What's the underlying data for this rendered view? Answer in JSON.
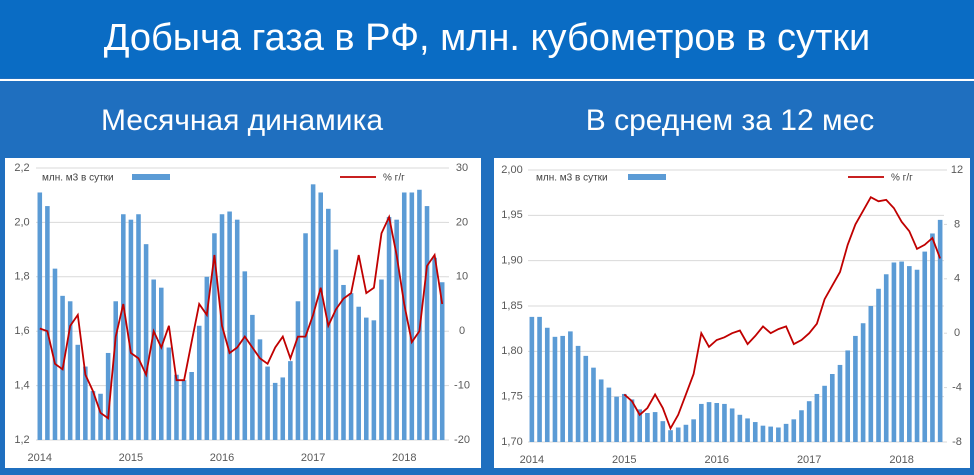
{
  "title": "Добыча газа в РФ, млн. кубометров в сутки",
  "chart_data": [
    {
      "type": "bar",
      "title": "Месячная динамика",
      "categories": [
        "2014",
        null,
        null,
        null,
        null,
        null,
        null,
        null,
        null,
        null,
        null,
        null,
        "2015",
        null,
        null,
        null,
        null,
        null,
        null,
        null,
        null,
        null,
        null,
        null,
        "2016",
        null,
        null,
        null,
        null,
        null,
        null,
        null,
        null,
        null,
        null,
        null,
        "2017",
        null,
        null,
        null,
        null,
        null,
        null,
        null,
        null,
        null,
        null,
        null,
        "2018",
        null,
        null,
        null,
        null,
        null
      ],
      "series": [
        {
          "name": "млн. м3 в сутки",
          "type": "bar",
          "color": "#5b9bd5",
          "values": [
            2.11,
            2.06,
            1.83,
            1.73,
            1.71,
            1.55,
            1.47,
            1.38,
            1.37,
            1.52,
            1.71,
            2.03,
            2.01,
            2.03,
            1.92,
            1.79,
            1.76,
            1.54,
            1.44,
            1.42,
            1.45,
            1.62,
            1.8,
            1.96,
            2.03,
            2.04,
            2.01,
            1.82,
            1.66,
            1.57,
            1.47,
            1.41,
            1.43,
            1.49,
            1.71,
            1.96,
            2.14,
            2.11,
            2.05,
            1.9,
            1.77,
            1.74,
            1.69,
            1.65,
            1.64,
            1.79,
            2.02,
            2.01,
            2.11,
            2.11,
            2.12,
            2.06,
            1.87,
            1.78
          ]
        },
        {
          "name": "% г/г",
          "type": "line",
          "color": "#c00000",
          "axis": "y2",
          "values": [
            0.5,
            0,
            -6,
            -7,
            1,
            3,
            -8,
            -11,
            -15,
            -16,
            -1,
            5,
            -4,
            -5,
            -8,
            0,
            -3,
            1,
            -9,
            -9,
            -2,
            5,
            3,
            14,
            1,
            -4,
            -3,
            -1,
            -3,
            -5,
            -6,
            -3,
            -1,
            -5,
            -1,
            -1,
            3,
            8,
            1,
            4,
            6,
            7,
            14,
            7,
            8,
            18,
            21,
            14,
            5,
            -2,
            0,
            12,
            14,
            5
          ]
        }
      ],
      "ylim": [
        1.2,
        2.2
      ],
      "yticks": [
        {
          "value": 1.2,
          "label": "1,2"
        },
        {
          "value": 1.4,
          "label": "1,4"
        },
        {
          "value": 1.6,
          "label": "1,6"
        },
        {
          "value": 1.8,
          "label": "1,8"
        },
        {
          "value": 2.0,
          "label": "2,0"
        },
        {
          "value": 2.2,
          "label": "2,2"
        }
      ],
      "y2lim": [
        -20,
        30
      ],
      "y2ticks": [
        -20,
        -10,
        0,
        10,
        20,
        30
      ],
      "grid": true
    },
    {
      "type": "bar",
      "title": "В среднем за 12 мес",
      "categories": [
        "2014",
        null,
        null,
        null,
        null,
        null,
        null,
        null,
        null,
        null,
        null,
        null,
        "2015",
        null,
        null,
        null,
        null,
        null,
        null,
        null,
        null,
        null,
        null,
        null,
        "2016",
        null,
        null,
        null,
        null,
        null,
        null,
        null,
        null,
        null,
        null,
        null,
        "2017",
        null,
        null,
        null,
        null,
        null,
        null,
        null,
        null,
        null,
        null,
        null,
        "2018",
        null,
        null,
        null,
        null,
        null
      ],
      "series": [
        {
          "name": "млн. м3 в сутки",
          "type": "bar",
          "color": "#5b9bd5",
          "values": [
            1.838,
            1.838,
            1.826,
            1.816,
            1.817,
            1.822,
            1.806,
            1.795,
            1.782,
            1.769,
            1.76,
            1.75,
            1.753,
            1.747,
            1.736,
            1.732,
            1.733,
            1.723,
            1.713,
            1.716,
            1.719,
            1.725,
            1.742,
            1.744,
            1.743,
            1.742,
            1.737,
            1.73,
            1.726,
            1.722,
            1.718,
            1.717,
            1.716,
            1.72,
            1.725,
            1.735,
            1.745,
            1.753,
            1.762,
            1.775,
            1.785,
            1.801,
            1.817,
            1.831,
            1.85,
            1.869,
            1.885,
            1.898,
            1.899,
            1.894,
            1.89,
            1.91,
            1.93,
            1.945
          ]
        },
        {
          "name": "% г/г",
          "type": "line",
          "color": "#c00000",
          "axis": "y2",
          "values": [
            null,
            null,
            null,
            null,
            null,
            null,
            null,
            null,
            null,
            null,
            null,
            null,
            -4.5,
            -5,
            -6,
            -5.5,
            -4.5,
            -5.5,
            -7,
            -6,
            -4.5,
            -3,
            0,
            -1,
            -0.5,
            -0.3,
            0,
            0.2,
            -0.8,
            -0.2,
            0.5,
            0,
            0.3,
            0.5,
            -0.8,
            -0.5,
            0,
            0.7,
            2.5,
            3.5,
            4.5,
            6.5,
            8,
            9,
            10,
            9.7,
            9.8,
            9.2,
            8.2,
            7.5,
            6.2,
            6.5,
            7,
            5.5
          ]
        }
      ],
      "ylim": [
        1.7,
        2.0
      ],
      "yticks": [
        {
          "value": 1.7,
          "label": "1,70"
        },
        {
          "value": 1.75,
          "label": "1,75"
        },
        {
          "value": 1.8,
          "label": "1,80"
        },
        {
          "value": 1.85,
          "label": "1,85"
        },
        {
          "value": 1.9,
          "label": "1,90"
        },
        {
          "value": 1.95,
          "label": "1,95"
        },
        {
          "value": 2.0,
          "label": "2,00"
        }
      ],
      "y2lim": [
        -8,
        12
      ],
      "y2ticks": [
        -8,
        -4,
        0,
        4,
        8,
        12
      ],
      "grid": true
    }
  ]
}
